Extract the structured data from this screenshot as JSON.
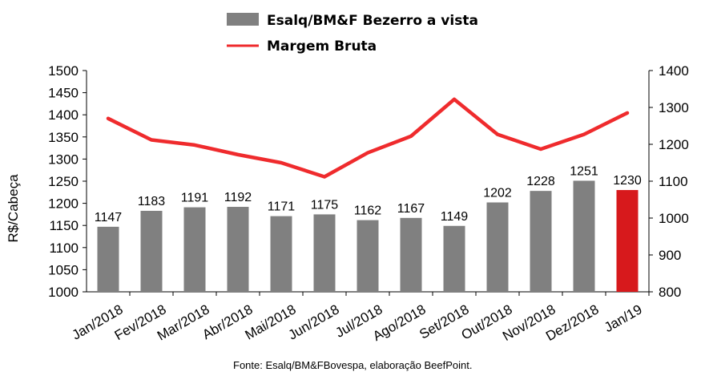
{
  "chart_data": {
    "type": "bar",
    "categories": [
      "Jan/2018",
      "Fev/2018",
      "Mar/2018",
      "Abr/2018",
      "Mai/2018",
      "Jun/2018",
      "Jul/2018",
      "Ago/2018",
      "Set/2018",
      "Out/2018",
      "Nov/2018",
      "Dez/2018",
      "Jan/19"
    ],
    "series": [
      {
        "name": "Esalq/BM&F Bezerro a vista",
        "type": "bar",
        "axis": "left",
        "color": "#808080",
        "highlight_color": "#d7191c",
        "highlight_index": 12,
        "values": [
          1147,
          1183,
          1191,
          1192,
          1171,
          1175,
          1162,
          1167,
          1149,
          1202,
          1228,
          1251,
          1230
        ]
      },
      {
        "name": "Margem Bruta",
        "type": "line",
        "axis": "right",
        "color": "#ef2b2d",
        "values": [
          1270,
          1212,
          1198,
          1172,
          1150,
          1112,
          1177,
          1222,
          1322,
          1227,
          1187,
          1227,
          1285
        ]
      }
    ],
    "ylabel": "R$/Cabeça",
    "ylim_left": [
      1000,
      1500
    ],
    "yticks_left": [
      1000,
      1050,
      1100,
      1150,
      1200,
      1250,
      1300,
      1350,
      1400,
      1450,
      1500
    ],
    "ylim_right": [
      800,
      1400
    ],
    "yticks_right": [
      800,
      900,
      1000,
      1100,
      1200,
      1300,
      1400
    ],
    "legend_position": "top-center",
    "grid": false
  },
  "source_note": "Fonte: Esalq/BM&FBovespa, elaboração BeefPoint."
}
